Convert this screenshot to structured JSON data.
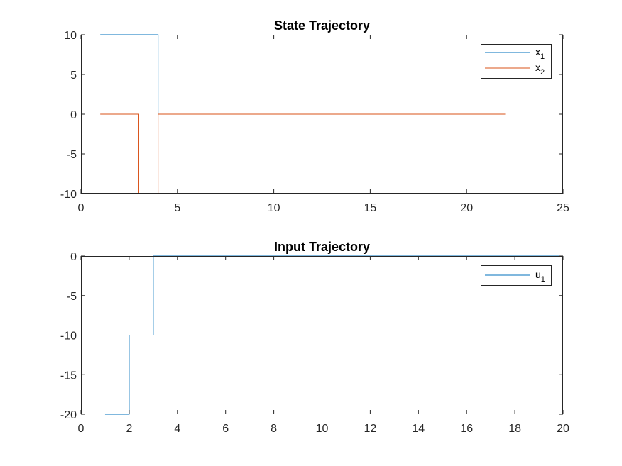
{
  "chart_data": [
    {
      "type": "line",
      "step": true,
      "title": "State Trajectory",
      "xlabel": "",
      "ylabel": "",
      "xlim": [
        0,
        25
      ],
      "ylim": [
        -10,
        10
      ],
      "xticks": [
        0,
        5,
        10,
        15,
        20,
        25
      ],
      "yticks": [
        -10,
        -5,
        0,
        5,
        10
      ],
      "grid": false,
      "legend_location": "top-right",
      "series": [
        {
          "name": "x",
          "subscript": "1",
          "color": "#0072BD",
          "x": [
            1,
            4,
            4,
            22
          ],
          "y": [
            10,
            10,
            0,
            0
          ]
        },
        {
          "name": "x",
          "subscript": "2",
          "color": "#D95319",
          "x": [
            1,
            3,
            3,
            4,
            4,
            22
          ],
          "y": [
            0,
            0,
            -10,
            -10,
            0,
            0
          ]
        }
      ]
    },
    {
      "type": "line",
      "step": true,
      "title": "Input Trajectory",
      "xlabel": "",
      "ylabel": "",
      "xlim": [
        0,
        20
      ],
      "ylim": [
        -20,
        0
      ],
      "xticks": [
        0,
        2,
        4,
        6,
        8,
        10,
        12,
        14,
        16,
        18,
        20
      ],
      "yticks": [
        -20,
        -15,
        -10,
        -5,
        0
      ],
      "grid": false,
      "legend_location": "top-right",
      "series": [
        {
          "name": "u",
          "subscript": "1",
          "color": "#0072BD",
          "x": [
            1,
            2,
            2,
            3,
            3,
            20
          ],
          "y": [
            -20,
            -20,
            -10,
            -10,
            0,
            0
          ]
        }
      ]
    }
  ]
}
